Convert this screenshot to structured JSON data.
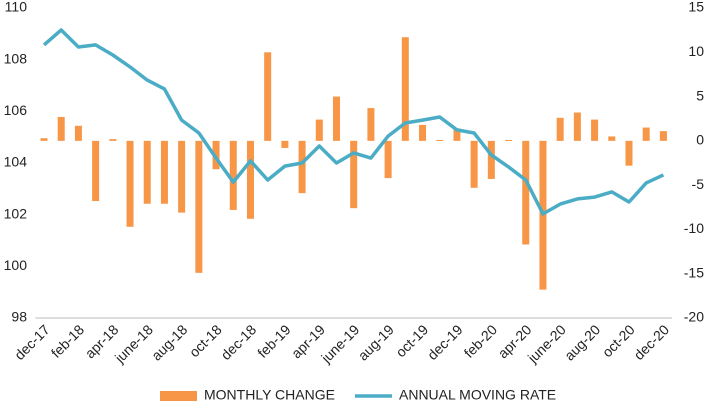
{
  "chart_data": {
    "type": "bar-line",
    "categories": [
      "dec-17",
      null,
      "feb-18",
      null,
      "apr-18",
      null,
      "june-18",
      null,
      "aug-18",
      null,
      "oct-18",
      null,
      "dec-18",
      null,
      "feb-19",
      null,
      "apr-19",
      null,
      "june-19",
      null,
      "aug-19",
      null,
      "oct-19",
      null,
      "dec-19",
      null,
      "feb-20",
      null,
      "apr-20",
      null,
      "june-20",
      null,
      "aug-20",
      null,
      "oct-20",
      null,
      "dec-20"
    ],
    "series": [
      {
        "name": "MONTHLY CHANGE",
        "type": "bar",
        "axis": "y2",
        "color": "#f79646",
        "values": [
          0.3,
          2.7,
          1.7,
          -6.8,
          0.2,
          -9.7,
          -7.1,
          -7.1,
          -8.1,
          -14.9,
          -3.2,
          -7.8,
          -8.8,
          10.0,
          -0.8,
          -5.9,
          2.4,
          5.0,
          -7.6,
          3.7,
          -4.2,
          11.7,
          1.8,
          0.1,
          1.4,
          -5.3,
          -4.3,
          0.1,
          -11.7,
          -16.8,
          2.6,
          3.2,
          2.4,
          0.5,
          -2.8,
          1.5,
          1.1
        ]
      },
      {
        "name": "ANNUAL MOVING RATE",
        "type": "line",
        "color": "#4bacc6",
        "values": [
          108.57,
          109.15,
          108.49,
          108.57,
          108.18,
          107.72,
          107.21,
          106.87,
          105.66,
          105.16,
          104.19,
          103.26,
          104.08,
          103.34,
          103.88,
          104.0,
          104.66,
          104.0,
          104.39,
          104.19,
          105.04,
          105.55,
          105.66,
          105.78,
          105.28,
          105.16,
          104.31,
          103.85,
          103.34,
          102.03,
          102.41,
          102.61,
          102.68,
          102.88,
          102.49,
          103.23,
          103.54
        ]
      }
    ],
    "ylim": [
      98,
      110
    ],
    "yticks": [
      98,
      100,
      102,
      104,
      106,
      108,
      110
    ],
    "y2lim": [
      -20,
      15
    ],
    "y2ticks": [
      -20,
      -15,
      -10,
      -5,
      0,
      5,
      10,
      15
    ],
    "grid": false,
    "legend": "bottom"
  }
}
